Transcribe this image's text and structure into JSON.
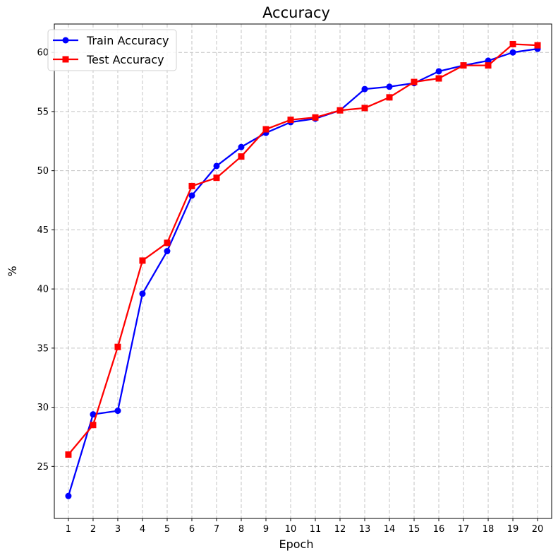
{
  "chart_data": {
    "type": "line",
    "title": "Accuracy",
    "xlabel": "Epoch",
    "ylabel": "%",
    "x": [
      1,
      2,
      3,
      4,
      5,
      6,
      7,
      8,
      9,
      10,
      11,
      12,
      13,
      14,
      15,
      16,
      17,
      18,
      19,
      20
    ],
    "xlim": [
      0.43,
      20.57
    ],
    "ylim": [
      20.6,
      62.4
    ],
    "yticks": [
      25,
      30,
      35,
      40,
      45,
      50,
      55,
      60
    ],
    "grid": true,
    "legend_position": "top-left",
    "series": [
      {
        "name": "Train Accuracy",
        "color": "#0000ff",
        "marker": "circle",
        "values": [
          22.5,
          29.4,
          29.7,
          39.6,
          43.2,
          47.9,
          50.4,
          52.0,
          53.2,
          54.1,
          54.4,
          55.1,
          56.9,
          57.1,
          57.4,
          58.4,
          58.9,
          59.3,
          60.0,
          60.3
        ]
      },
      {
        "name": "Test Accuracy",
        "color": "#ff0000",
        "marker": "square",
        "values": [
          26.0,
          28.5,
          35.1,
          42.4,
          43.9,
          48.7,
          49.4,
          51.2,
          53.5,
          54.3,
          54.5,
          55.1,
          55.3,
          56.2,
          57.5,
          57.8,
          58.9,
          58.9,
          60.7,
          60.6
        ]
      }
    ]
  }
}
